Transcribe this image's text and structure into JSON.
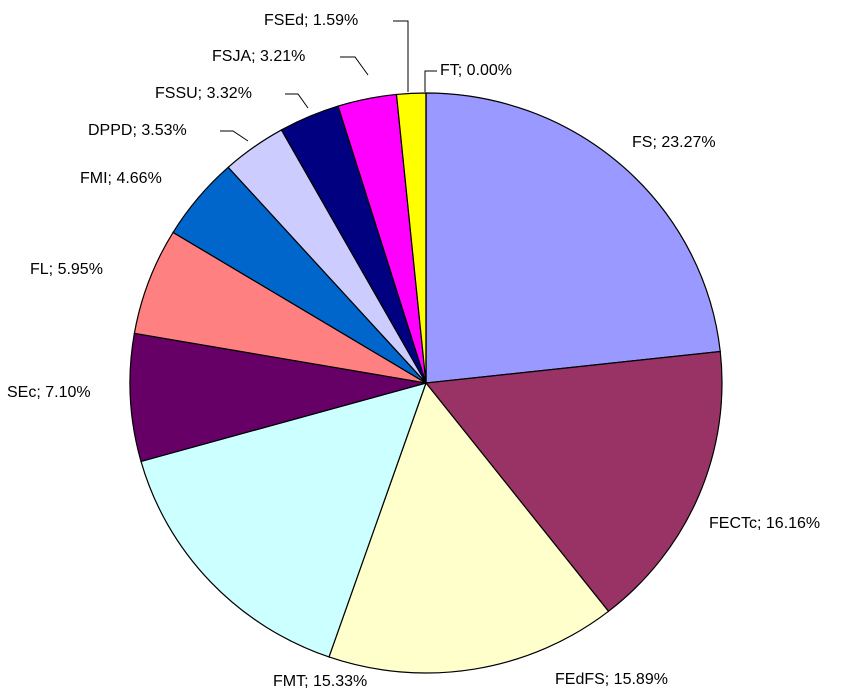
{
  "chart_data": {
    "type": "pie",
    "labels": [
      "FS; 23.27%",
      "FECTc; 16.16%",
      "FEdFS; 15.89%",
      "FMT; 15.33%",
      "SEc; 7.10%",
      "FL; 5.95%",
      "FMI; 4.66%",
      "DPPD; 3.53%",
      "FSSU; 3.32%",
      "FSJA; 3.21%",
      "FSEd; 1.59%",
      "FT; 0.00%"
    ],
    "values": [
      23.27,
      16.16,
      15.89,
      15.33,
      7.1,
      5.95,
      4.66,
      3.53,
      3.32,
      3.21,
      1.59,
      0.0
    ],
    "colors": [
      "#9999ff",
      "#993366",
      "#ffffcc",
      "#ccffff",
      "#660066",
      "#ff8080",
      "#0066cc",
      "#ccccff",
      "#000080",
      "#ff00ff",
      "#ffff00",
      "#00ffff"
    ]
  }
}
